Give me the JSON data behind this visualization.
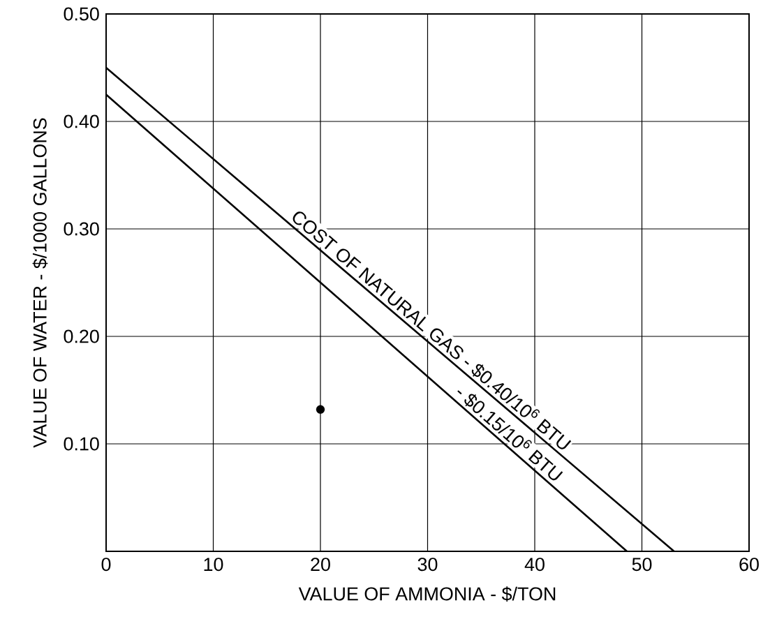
{
  "chart_data": {
    "type": "line",
    "xlabel": "VALUE OF AMMONIA - $/TON",
    "ylabel": "VALUE OF WATER - $/1000 GALLONS",
    "xlim": [
      0,
      60
    ],
    "ylim": [
      0,
      0.5
    ],
    "xticks": [
      0,
      10,
      20,
      30,
      40,
      50,
      60
    ],
    "yticks": [
      {
        "value": 0.1,
        "label": "0.10"
      },
      {
        "value": 0.2,
        "label": "0.20"
      },
      {
        "value": 0.3,
        "label": "0.30"
      },
      {
        "value": 0.4,
        "label": "0.40"
      },
      {
        "value": 0.5,
        "label": "0.50"
      }
    ],
    "grid": true,
    "series": [
      {
        "color": "#000000",
        "x": [
          0,
          53
        ],
        "values": [
          0.45,
          0
        ]
      },
      {
        "color": "#000000",
        "x": [
          0,
          48.6
        ],
        "values": [
          0.425,
          0
        ]
      },
      {
        "type": "scatter",
        "marker": "circle",
        "color": "#000000",
        "x": [
          20
        ],
        "values": [
          0.132
        ]
      }
    ],
    "annotations": [
      "COST OF NATURAL GAS - $0.40/10$^{6}$ BTU",
      "- $0.15/10$^{6}$ BTU"
    ]
  }
}
